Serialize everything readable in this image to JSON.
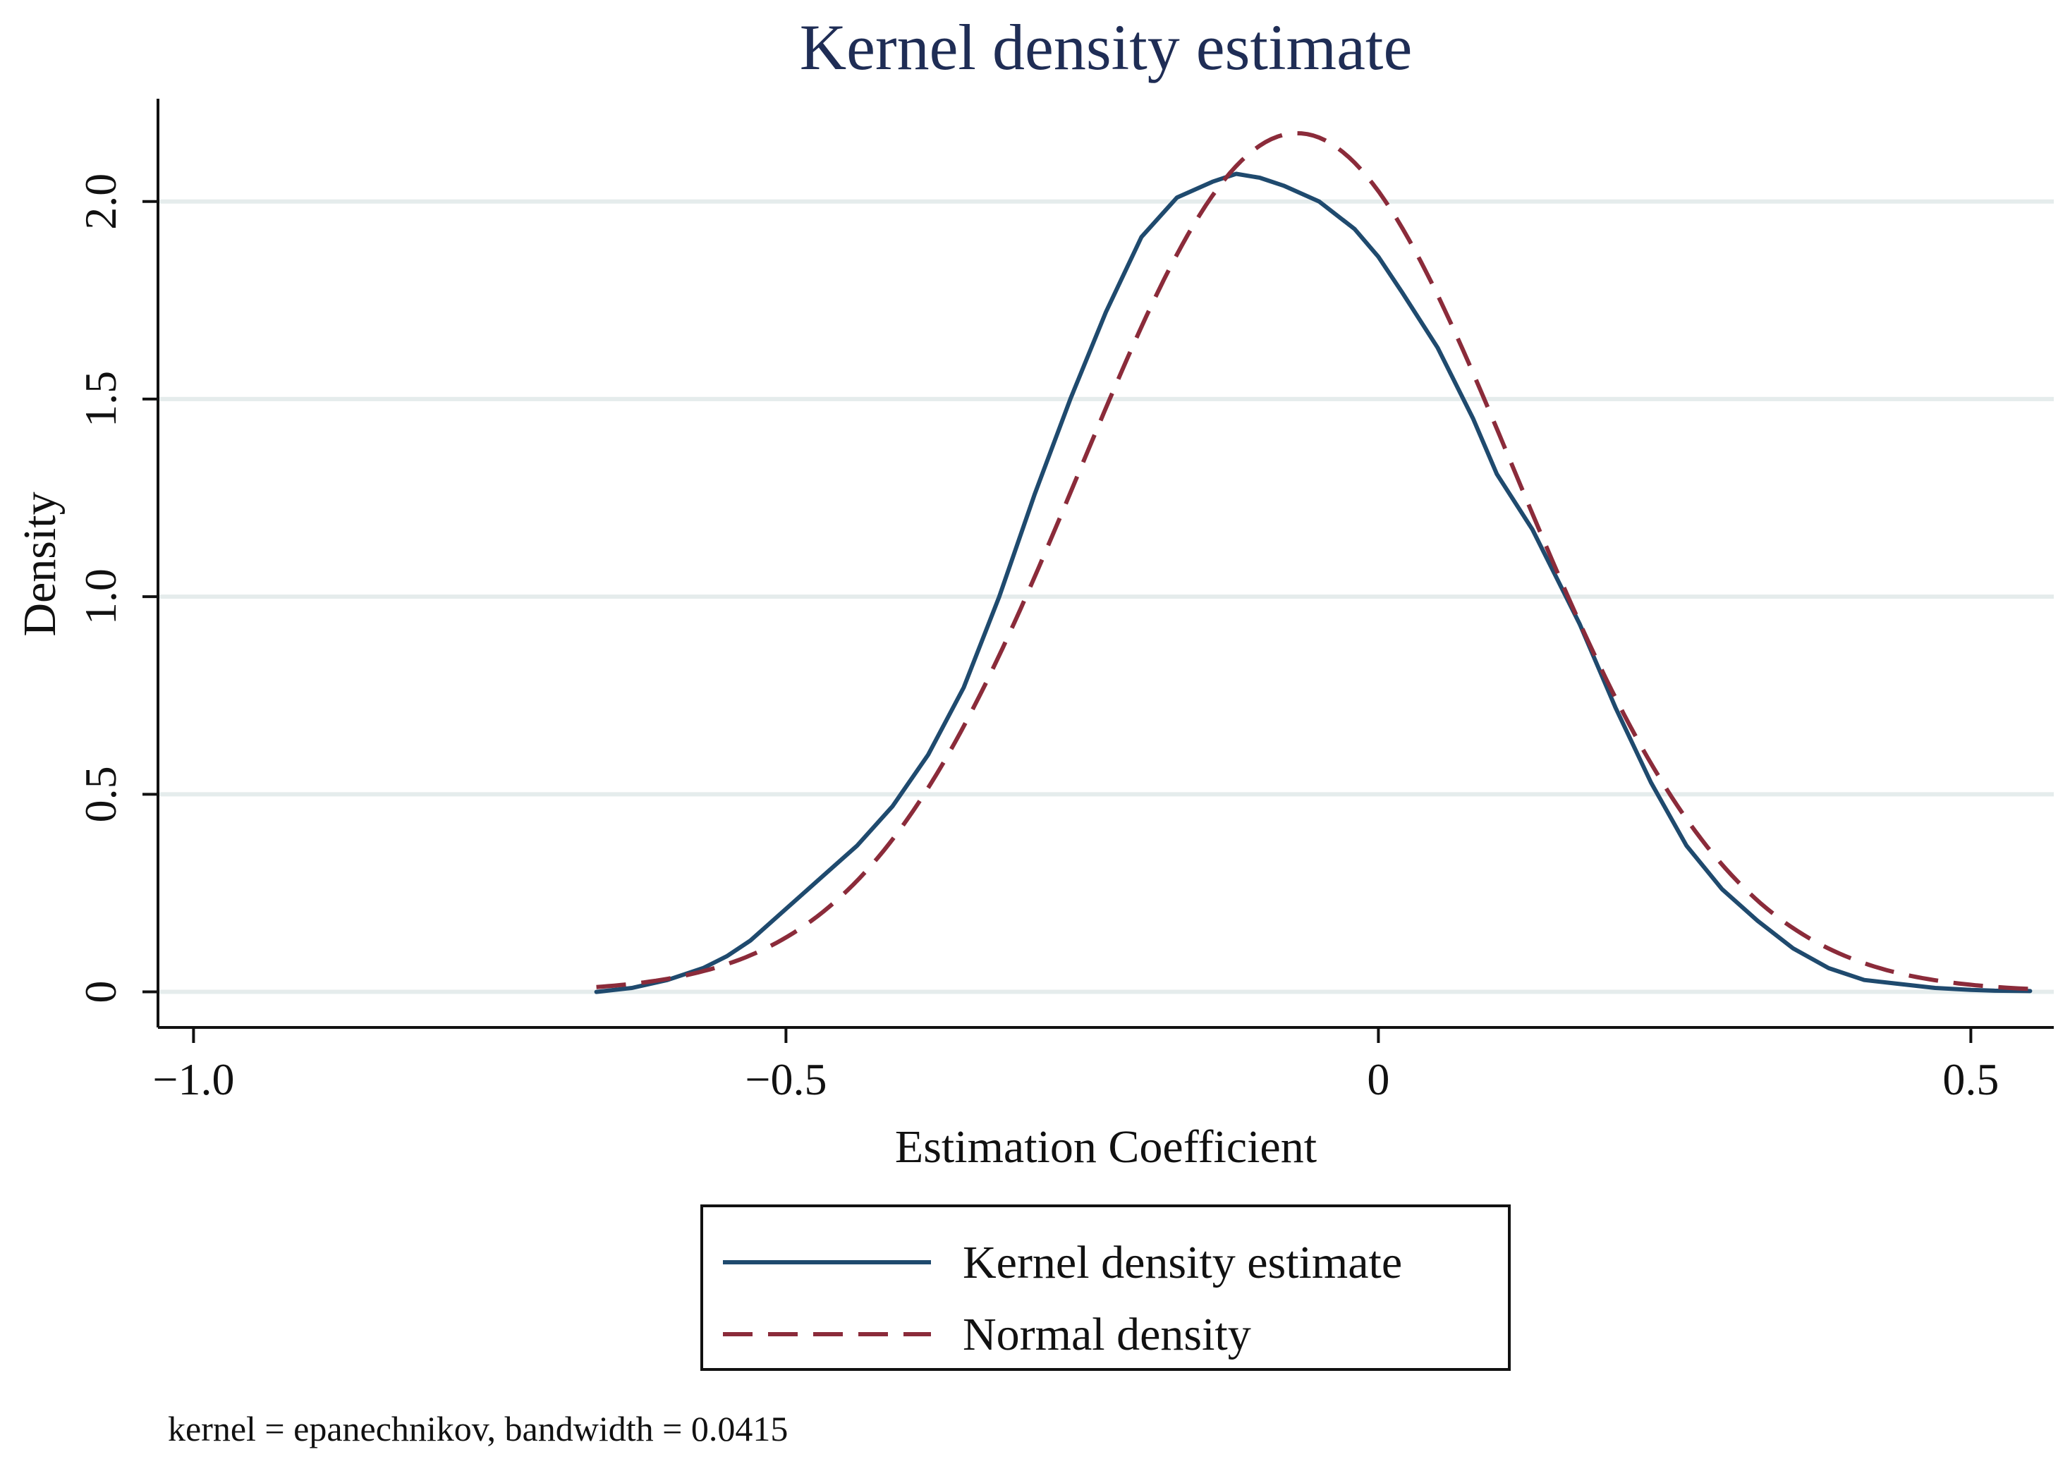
{
  "chart_data": {
    "type": "line",
    "title": "Kernel density estimate",
    "xlabel": "Estimation Coefficient",
    "ylabel": "Density",
    "xlim": [
      -1.03,
      0.57
    ],
    "ylim": [
      -0.09,
      2.26
    ],
    "x_ticks": [
      -1.0,
      -0.5,
      0,
      0.5
    ],
    "x_tick_labels": [
      "−1.0",
      "−0.5",
      "0",
      "0.5"
    ],
    "y_ticks": [
      0,
      0.5,
      1.0,
      1.5,
      2.0
    ],
    "y_tick_labels": [
      "0",
      "0.5",
      "1.0",
      "1.5",
      "2.0"
    ],
    "grid": true,
    "legend_position": "bottom",
    "note": "kernel = epanechnikov, bandwidth = 0.0415",
    "colors": {
      "kernel": "#1f4a6e",
      "normal": "#8b2b3a",
      "grid": "#e5ecec",
      "title": "#1f2d55"
    },
    "series": [
      {
        "name": "Kernel density estimate",
        "style": "solid",
        "x": [
          -0.66,
          -0.63,
          -0.6,
          -0.57,
          -0.55,
          -0.53,
          -0.5,
          -0.47,
          -0.44,
          -0.41,
          -0.38,
          -0.35,
          -0.32,
          -0.29,
          -0.26,
          -0.23,
          -0.2,
          -0.17,
          -0.14,
          -0.12,
          -0.1,
          -0.08,
          -0.05,
          -0.02,
          0.0,
          0.02,
          0.05,
          0.08,
          0.1,
          0.13,
          0.15,
          0.17,
          0.2,
          0.23,
          0.26,
          0.29,
          0.32,
          0.35,
          0.38,
          0.41,
          0.44,
          0.47,
          0.5,
          0.52,
          0.55
        ],
        "y": [
          0.0,
          0.01,
          0.03,
          0.06,
          0.09,
          0.13,
          0.21,
          0.29,
          0.37,
          0.47,
          0.6,
          0.77,
          1.0,
          1.26,
          1.5,
          1.72,
          1.91,
          2.01,
          2.05,
          2.07,
          2.06,
          2.04,
          2.0,
          1.93,
          1.86,
          1.77,
          1.63,
          1.45,
          1.31,
          1.17,
          1.05,
          0.93,
          0.72,
          0.53,
          0.37,
          0.26,
          0.18,
          0.11,
          0.06,
          0.03,
          0.02,
          0.01,
          0.005,
          0.003,
          0.002
        ]
      },
      {
        "name": "Normal density",
        "style": "dashed",
        "mean": -0.0687,
        "sd": 0.1836,
        "x_range": [
          -0.66,
          0.55
        ]
      }
    ]
  }
}
